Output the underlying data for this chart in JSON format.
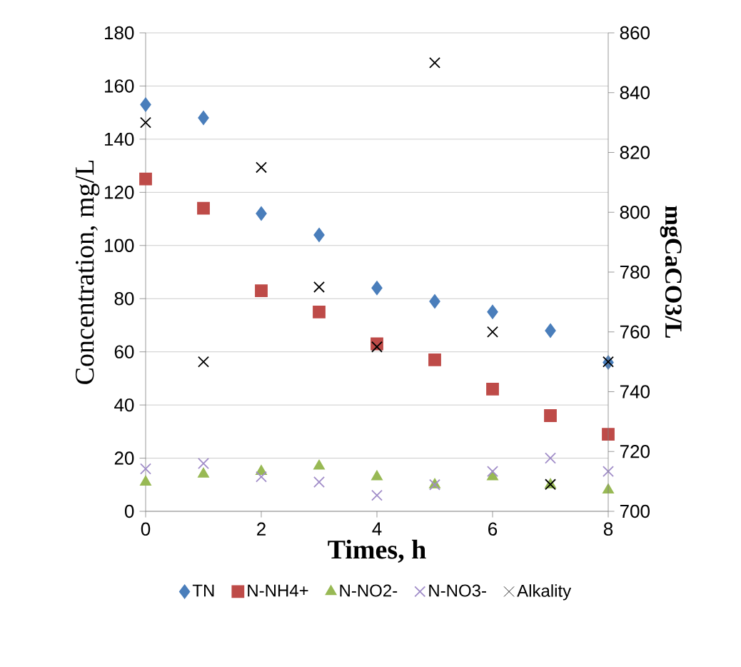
{
  "chart_data": {
    "type": "scatter",
    "xlabel": "Times, h",
    "ylabel": "Concentration, mg/L",
    "y2label": "mgCaCO3/L",
    "x": [
      0,
      1,
      2,
      3,
      4,
      5,
      6,
      7,
      8
    ],
    "xlim": [
      0,
      8
    ],
    "xticks": [
      0,
      2,
      4,
      6,
      8
    ],
    "ylim": [
      0,
      180
    ],
    "yticks": [
      0,
      20,
      40,
      60,
      80,
      100,
      120,
      140,
      160,
      180
    ],
    "y2lim": [
      700,
      860
    ],
    "y2ticks": [
      700,
      720,
      740,
      760,
      780,
      800,
      820,
      840,
      860
    ],
    "grid": "y",
    "legend": "bottom",
    "series": [
      {
        "name": "TN",
        "color": "#4a7ebb",
        "marker": "diamond",
        "values": [
          153,
          148,
          112,
          104,
          84,
          79,
          75,
          68,
          56
        ]
      },
      {
        "name": "N-NH4+",
        "color": "#be4b48",
        "marker": "square",
        "values": [
          125,
          114,
          83,
          75,
          63,
          57,
          46,
          36,
          29
        ]
      },
      {
        "name": "N-NO2-",
        "color": "#98b954",
        "marker": "triangle",
        "values": [
          11,
          14,
          15,
          17,
          13,
          10,
          13,
          10,
          8
        ]
      },
      {
        "name": "N-NO3-",
        "color": "#a08cc8",
        "marker": "cross",
        "values": [
          16,
          18,
          13,
          11,
          6,
          10,
          15,
          20,
          15
        ]
      },
      {
        "name": "Alkality",
        "color": "#000000",
        "marker": "cross",
        "axis": "y2",
        "values": [
          830,
          750,
          815,
          775,
          755,
          850,
          760,
          709,
          750
        ]
      }
    ]
  }
}
